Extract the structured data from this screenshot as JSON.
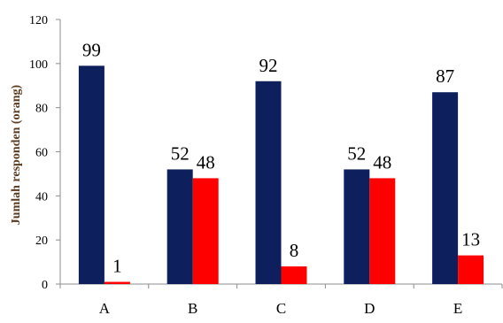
{
  "chart_data": {
    "type": "bar",
    "categories": [
      "A",
      "B",
      "C",
      "D",
      "E"
    ],
    "series": [
      {
        "values": [
          99,
          52,
          92,
          52,
          87
        ],
        "color": "#0d1f5c"
      },
      {
        "values": [
          1,
          48,
          8,
          48,
          13
        ],
        "color": "#ff0000"
      }
    ],
    "title": "",
    "xlabel": "",
    "ylabel": "Jumlah responden (orang)",
    "ylim": [
      0,
      120
    ],
    "yticks": [
      0,
      20,
      40,
      60,
      80,
      100,
      120
    ],
    "grid": false,
    "legend": "none"
  }
}
